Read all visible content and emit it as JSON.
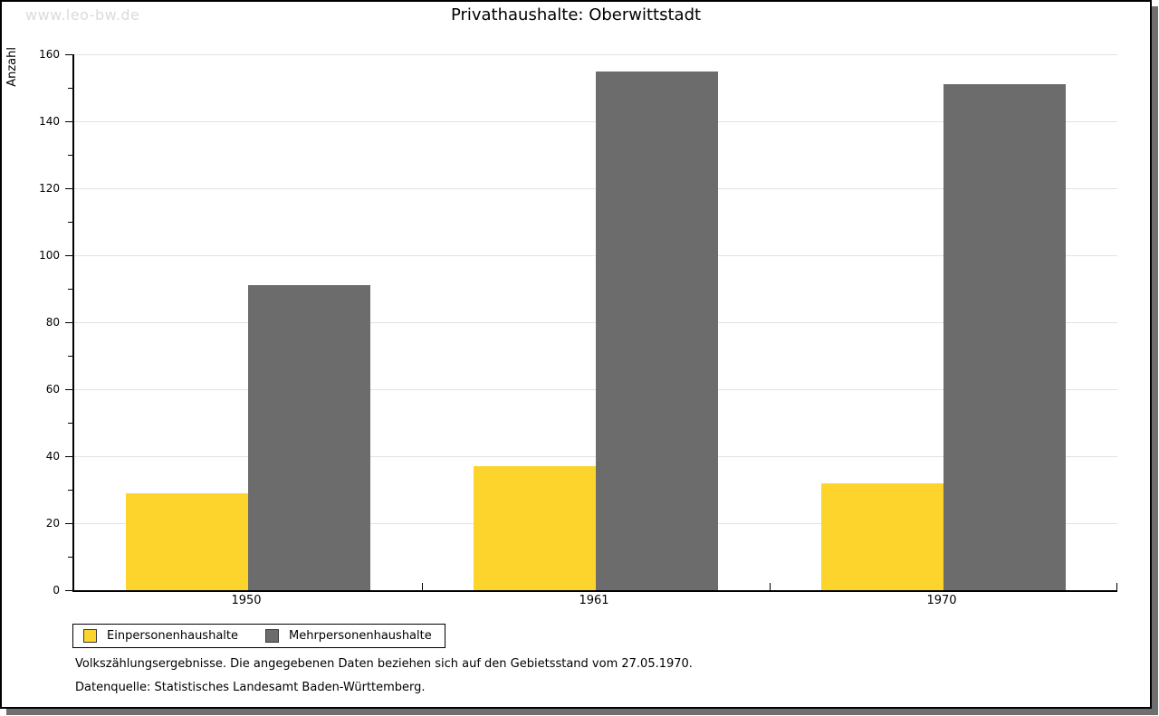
{
  "watermark": "www.leo-bw.de",
  "title": "Privathaushalte: Oberwittstadt",
  "chart_data": {
    "type": "bar",
    "title": "Privathaushalte: Oberwittstadt",
    "categories": [
      "1950",
      "1961",
      "1970"
    ],
    "series": [
      {
        "name": "Einpersonenhaushalte",
        "color": "#FCD42C",
        "values": [
          29,
          37,
          32
        ]
      },
      {
        "name": "Mehrpersonenhaushalte",
        "color": "#6C6C6C",
        "values": [
          91,
          155,
          151
        ]
      }
    ],
    "xlabel": "",
    "ylabel": "Anzahl",
    "ylim": [
      0,
      160
    ],
    "ytick_step": 20,
    "ytick_minor_step": 10,
    "grid": true,
    "legend_position": "bottom-left"
  },
  "footer": {
    "line1": "Volkszählungsergebnisse. Die angegebenen Daten beziehen sich auf den Gebietsstand vom 27.05.1970.",
    "line2": "Datenquelle: Statistisches Landesamt Baden-Württemberg."
  },
  "colors": {
    "bar_yellow": "#FCD42C",
    "bar_gray": "#6C6C6C",
    "gridline": "#e2e2e2",
    "axis": "#000000",
    "watermark": "#dbdbdb",
    "frame_shadow": "#6f6f6f",
    "background": "#ffffff"
  }
}
